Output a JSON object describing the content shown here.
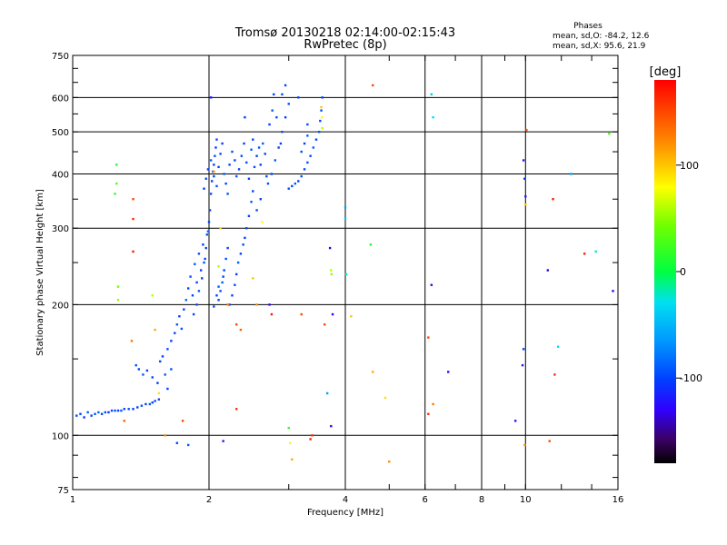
{
  "chart_data": {
    "type": "scatter",
    "title": "Tromsø 20130218 02:14:00-02:15:43",
    "subtitle": "RwPretec (8p)",
    "xlabel": "Frequency [MHz]",
    "ylabel": "Stationary phase Virtual Height [km]",
    "x_scale": "log",
    "y_scale": "log",
    "xlim": [
      1,
      16
    ],
    "ylim": [
      75,
      750
    ],
    "x_ticks": [
      1,
      2,
      4,
      6,
      8,
      10,
      16
    ],
    "x_tick_labels": [
      "1",
      "2",
      "4",
      "6",
      "8",
      "10",
      "16"
    ],
    "y_ticks": [
      75,
      100,
      200,
      300,
      400,
      500,
      600,
      750
    ],
    "y_tick_labels": [
      "75",
      "100",
      "200",
      "300",
      "400",
      "500",
      "600",
      "750"
    ],
    "x_grid": [
      2,
      4,
      6,
      8,
      10
    ],
    "y_grid": [
      100,
      200,
      300,
      400,
      500,
      600
    ],
    "grid": true,
    "phases_info": {
      "heading": "Phases",
      "line1": "mean, sd,O: -84.2, 12.6",
      "line2": "mean, sd,X:  95.6, 21.9"
    },
    "colorbar": {
      "label": "[deg]",
      "range": [
        -180,
        180
      ],
      "ticks": [
        100,
        0,
        -100
      ],
      "tick_labels": [
        "100",
        "0",
        "-100"
      ],
      "position": "right"
    },
    "series": [
      {
        "points": [
          [
            1.02,
            111,
            -95
          ],
          [
            1.04,
            112,
            -100
          ],
          [
            1.06,
            110,
            -105
          ],
          [
            1.08,
            113,
            -90
          ],
          [
            1.1,
            111,
            -100
          ],
          [
            1.12,
            112,
            -95
          ],
          [
            1.14,
            113,
            -85
          ],
          [
            1.16,
            112,
            -100
          ],
          [
            1.18,
            113,
            -95
          ],
          [
            1.2,
            113,
            -110
          ],
          [
            1.22,
            114,
            -100
          ],
          [
            1.24,
            114,
            -95
          ],
          [
            1.26,
            114,
            -100
          ],
          [
            1.28,
            114,
            -90
          ],
          [
            1.3,
            115,
            -100
          ],
          [
            1.33,
            115,
            -95
          ],
          [
            1.36,
            115,
            -105
          ],
          [
            1.39,
            116,
            -100
          ],
          [
            1.42,
            117,
            -95
          ],
          [
            1.45,
            118,
            -100
          ],
          [
            1.48,
            118,
            -90
          ],
          [
            1.5,
            119,
            -100
          ],
          [
            1.52,
            120,
            -95
          ],
          [
            1.55,
            121,
            -100
          ],
          [
            1.38,
            145,
            -95
          ],
          [
            1.4,
            142,
            -100
          ],
          [
            1.43,
            138,
            -90
          ],
          [
            1.46,
            141,
            -100
          ],
          [
            1.5,
            136,
            -95
          ],
          [
            1.54,
            132,
            -105
          ],
          [
            1.56,
            148,
            -100
          ],
          [
            1.6,
            138,
            -90
          ],
          [
            1.62,
            128,
            -100
          ],
          [
            1.65,
            142,
            -95
          ],
          [
            1.58,
            152,
            -100
          ],
          [
            1.62,
            158,
            -95
          ],
          [
            1.65,
            165,
            -105
          ],
          [
            1.68,
            172,
            -100
          ],
          [
            1.7,
            180,
            -90
          ],
          [
            1.72,
            188,
            -100
          ],
          [
            1.74,
            176,
            -95
          ],
          [
            1.76,
            195,
            -100
          ],
          [
            1.78,
            205,
            -85
          ],
          [
            1.8,
            218,
            -100
          ],
          [
            1.82,
            232,
            -95
          ],
          [
            1.84,
            210,
            -100
          ],
          [
            1.86,
            248,
            -90
          ],
          [
            1.88,
            225,
            -100
          ],
          [
            1.9,
            262,
            -95
          ],
          [
            1.92,
            240,
            -100
          ],
          [
            1.94,
            275,
            -105
          ],
          [
            1.96,
            255,
            -100
          ],
          [
            1.98,
            290,
            -95
          ],
          [
            2.0,
            310,
            -100
          ],
          [
            1.85,
            190,
            -100
          ],
          [
            1.88,
            200,
            -95
          ],
          [
            1.9,
            215,
            -90
          ],
          [
            1.93,
            230,
            -100
          ],
          [
            1.95,
            250,
            -95
          ],
          [
            1.97,
            270,
            -100
          ],
          [
            1.99,
            295,
            -85
          ],
          [
            2.01,
            330,
            -100
          ],
          [
            2.02,
            360,
            -95
          ],
          [
            2.03,
            385,
            -100
          ],
          [
            2.04,
            405,
            -90
          ],
          [
            2.05,
            420,
            -100
          ],
          [
            2.06,
            440,
            -95
          ],
          [
            2.07,
            460,
            -100
          ],
          [
            2.08,
            480,
            -95
          ],
          [
            1.95,
            370,
            -100
          ],
          [
            1.97,
            390,
            -95
          ],
          [
            1.99,
            410,
            -100
          ],
          [
            2.02,
            430,
            -90
          ],
          [
            2.05,
            395,
            -100
          ],
          [
            2.08,
            375,
            -95
          ],
          [
            2.1,
            415,
            -100
          ],
          [
            2.12,
            445,
            -95
          ],
          [
            2.14,
            470,
            -100
          ],
          [
            2.16,
            400,
            -90
          ],
          [
            2.18,
            380,
            -100
          ],
          [
            2.2,
            360,
            -95
          ],
          [
            2.22,
            420,
            -100
          ],
          [
            2.25,
            450,
            -95
          ],
          [
            2.28,
            430,
            -100
          ],
          [
            2.3,
            395,
            -90
          ],
          [
            2.33,
            410,
            -100
          ],
          [
            2.36,
            440,
            -95
          ],
          [
            2.39,
            470,
            -100
          ],
          [
            2.42,
            425,
            -95
          ],
          [
            2.45,
            390,
            -100
          ],
          [
            2.48,
            455,
            -90
          ],
          [
            2.5,
            480,
            -100
          ],
          [
            2.52,
            415,
            -95
          ],
          [
            2.55,
            440,
            -100
          ],
          [
            2.58,
            460,
            -95
          ],
          [
            2.6,
            420,
            -100
          ],
          [
            2.63,
            470,
            -90
          ],
          [
            2.66,
            445,
            -100
          ],
          [
            2.68,
            395,
            -95
          ],
          [
            2.1,
            205,
            -100
          ],
          [
            2.12,
            215,
            -95
          ],
          [
            2.14,
            225,
            -90
          ],
          [
            2.16,
            240,
            -100
          ],
          [
            2.18,
            255,
            -95
          ],
          [
            2.2,
            270,
            -100
          ],
          [
            2.05,
            198,
            -95
          ],
          [
            2.08,
            210,
            -100
          ],
          [
            2.1,
            220,
            -90
          ],
          [
            2.15,
            232,
            -100
          ],
          [
            2.22,
            200,
            -95
          ],
          [
            2.25,
            210,
            -100
          ],
          [
            2.28,
            222,
            -95
          ],
          [
            2.3,
            235,
            -100
          ],
          [
            2.32,
            250,
            -90
          ],
          [
            2.35,
            262,
            -100
          ],
          [
            2.38,
            275,
            -95
          ],
          [
            2.4,
            285,
            -100
          ],
          [
            2.42,
            300,
            -95
          ],
          [
            2.45,
            320,
            -100
          ],
          [
            2.48,
            345,
            -90
          ],
          [
            2.5,
            365,
            -100
          ],
          [
            2.55,
            330,
            -95
          ],
          [
            2.6,
            350,
            -100
          ],
          [
            2.7,
            380,
            -95
          ],
          [
            2.75,
            400,
            -100
          ],
          [
            2.8,
            430,
            -90
          ],
          [
            2.85,
            460,
            -100
          ],
          [
            2.9,
            500,
            -95
          ],
          [
            2.95,
            540,
            -100
          ],
          [
            3.0,
            580,
            -95
          ],
          [
            2.72,
            520,
            -100
          ],
          [
            2.76,
            560,
            -90
          ],
          [
            2.78,
            610,
            -100
          ],
          [
            2.9,
            610,
            -95
          ],
          [
            2.95,
            640,
            -100
          ],
          [
            2.82,
            540,
            -95
          ],
          [
            2.88,
            470,
            -100
          ],
          [
            3.0,
            370,
            -95
          ],
          [
            3.05,
            375,
            -100
          ],
          [
            3.1,
            380,
            -90
          ],
          [
            3.15,
            385,
            -100
          ],
          [
            3.2,
            395,
            -95
          ],
          [
            3.25,
            410,
            -100
          ],
          [
            3.3,
            425,
            -95
          ],
          [
            3.35,
            440,
            -100
          ],
          [
            3.4,
            460,
            -90
          ],
          [
            3.45,
            480,
            -100
          ],
          [
            3.5,
            500,
            -95
          ],
          [
            3.52,
            530,
            -100
          ],
          [
            3.54,
            560,
            -95
          ],
          [
            3.56,
            600,
            -100
          ],
          [
            3.2,
            450,
            -95
          ],
          [
            3.25,
            470,
            -100
          ],
          [
            3.3,
            490,
            -90
          ],
          [
            3.15,
            600,
            -100
          ],
          [
            3.3,
            520,
            -95
          ],
          [
            3.55,
            540,
            80
          ],
          [
            3.54,
            570,
            100
          ],
          [
            3.56,
            510,
            60
          ],
          [
            1.25,
            420,
            10
          ],
          [
            1.25,
            380,
            30
          ],
          [
            1.24,
            360,
            20
          ],
          [
            1.26,
            220,
            40
          ],
          [
            1.26,
            205,
            50
          ],
          [
            1.36,
            350,
            150
          ],
          [
            1.36,
            315,
            160
          ],
          [
            1.36,
            265,
            170
          ],
          [
            1.35,
            165,
            130
          ],
          [
            1.3,
            108,
            140
          ],
          [
            1.5,
            210,
            60
          ],
          [
            1.52,
            175,
            110
          ],
          [
            1.55,
            125,
            90
          ],
          [
            1.6,
            100,
            120
          ],
          [
            1.75,
            108,
            150
          ],
          [
            1.8,
            95,
            -90
          ],
          [
            1.7,
            96,
            -100
          ],
          [
            2.02,
            600,
            -120
          ],
          [
            2.05,
            405,
            120
          ],
          [
            2.1,
            245,
            60
          ],
          [
            2.12,
            300,
            90
          ],
          [
            2.2,
            200,
            130
          ],
          [
            2.3,
            180,
            150
          ],
          [
            2.35,
            175,
            140
          ],
          [
            2.3,
            115,
            160
          ],
          [
            2.15,
            97,
            -120
          ],
          [
            2.4,
            540,
            -100
          ],
          [
            2.5,
            230,
            100
          ],
          [
            2.55,
            200,
            120
          ],
          [
            2.62,
            310,
            80
          ],
          [
            2.72,
            200,
            -130
          ],
          [
            2.75,
            190,
            170
          ],
          [
            3.0,
            104,
            20
          ],
          [
            3.02,
            96,
            80
          ],
          [
            3.05,
            88,
            110
          ],
          [
            3.2,
            190,
            150
          ],
          [
            3.35,
            98,
            170
          ],
          [
            3.38,
            100,
            160
          ],
          [
            3.6,
            180,
            150
          ],
          [
            3.65,
            125,
            -60
          ],
          [
            3.7,
            270,
            -140
          ],
          [
            3.72,
            240,
            60
          ],
          [
            3.73,
            235,
            50
          ],
          [
            3.75,
            190,
            -130
          ],
          [
            3.72,
            105,
            -130
          ],
          [
            4.0,
            335,
            -60
          ],
          [
            4.0,
            315,
            -40
          ],
          [
            4.02,
            235,
            -20
          ],
          [
            4.12,
            188,
            100
          ],
          [
            4.6,
            640,
            150
          ],
          [
            4.55,
            275,
            10
          ],
          [
            4.6,
            140,
            110
          ],
          [
            4.9,
            122,
            90
          ],
          [
            5.0,
            87,
            120
          ],
          [
            6.2,
            610,
            -40
          ],
          [
            6.25,
            540,
            -30
          ],
          [
            6.2,
            222,
            -130
          ],
          [
            6.1,
            168,
            150
          ],
          [
            6.25,
            118,
            130
          ],
          [
            6.1,
            112,
            160
          ],
          [
            6.75,
            140,
            -130
          ],
          [
            9.5,
            108,
            -120
          ],
          [
            9.9,
            430,
            -120
          ],
          [
            9.95,
            390,
            -100
          ],
          [
            10.0,
            355,
            -120
          ],
          [
            10.0,
            340,
            100
          ],
          [
            9.9,
            158,
            -100
          ],
          [
            9.85,
            145,
            -120
          ],
          [
            10.05,
            505,
            150
          ],
          [
            9.95,
            95,
            110
          ],
          [
            11.2,
            240,
            -140
          ],
          [
            11.3,
            97,
            150
          ],
          [
            11.5,
            350,
            170
          ],
          [
            11.6,
            138,
            160
          ],
          [
            11.8,
            160,
            -30
          ],
          [
            12.6,
            400,
            -60
          ],
          [
            13.5,
            262,
            170
          ],
          [
            14.3,
            265,
            -20
          ],
          [
            15.3,
            495,
            30
          ],
          [
            15.6,
            215,
            -130
          ]
        ]
      }
    ]
  }
}
